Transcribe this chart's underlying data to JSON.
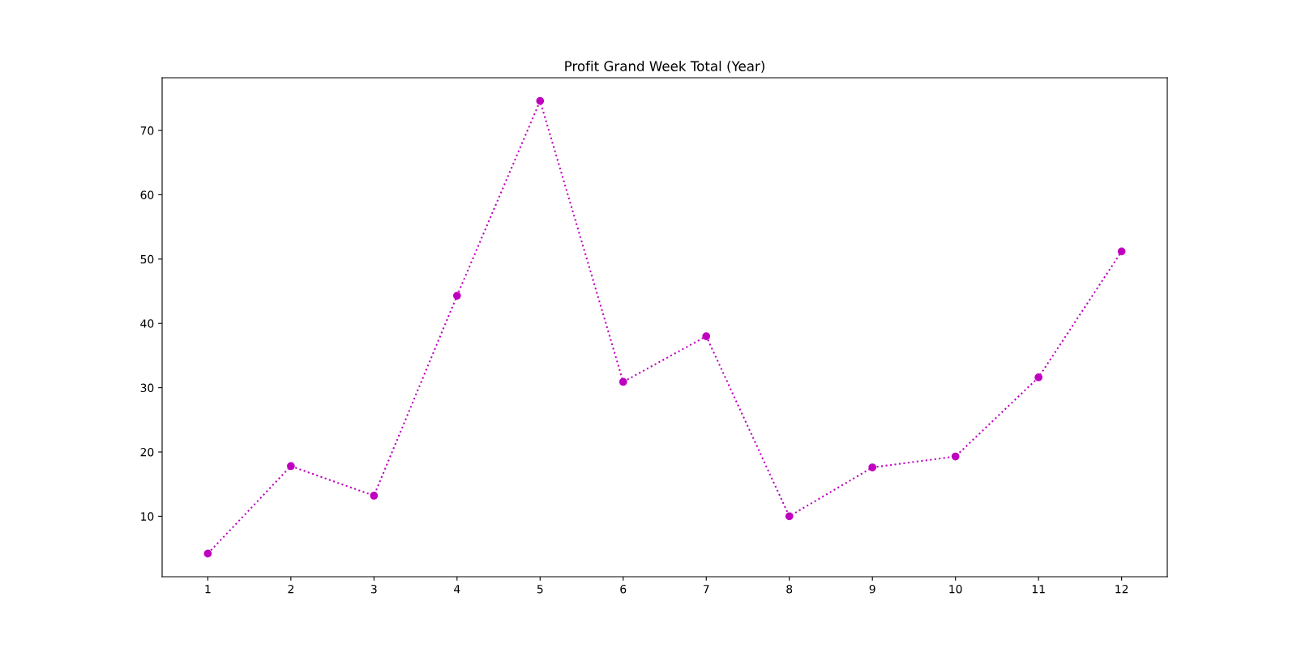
{
  "chart_data": {
    "type": "line",
    "title": "Profit Grand Week Total (Year)",
    "x": [
      1,
      2,
      3,
      4,
      5,
      6,
      7,
      8,
      9,
      10,
      11,
      12
    ],
    "series": [
      {
        "color": "#bf00bf",
        "values": [
          4.2,
          17.8,
          13.2,
          44.3,
          74.6,
          30.9,
          38.0,
          10.0,
          17.6,
          19.3,
          31.6,
          51.2
        ]
      }
    ],
    "xlim": [
      0.45,
      12.55
    ],
    "xticks": [
      1,
      2,
      3,
      4,
      5,
      6,
      7,
      8,
      9,
      10,
      11,
      12
    ],
    "ylim": [
      0.6,
      78.2
    ],
    "yticks": [
      10,
      20,
      30,
      40,
      50,
      60,
      70
    ],
    "marker": "circle",
    "line_style": "dotted",
    "grid": false,
    "legend": false
  }
}
